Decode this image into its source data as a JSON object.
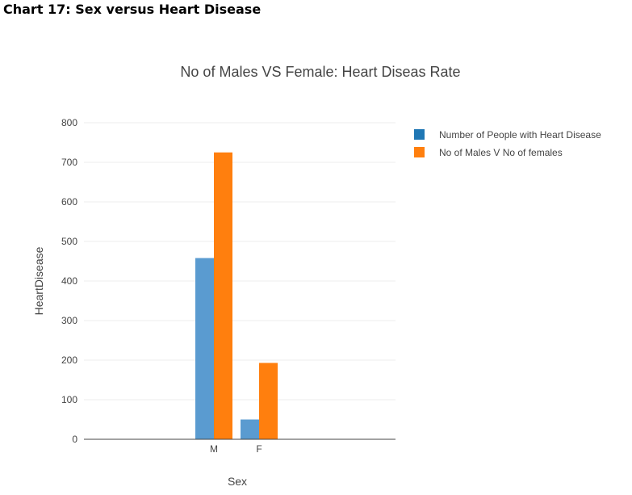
{
  "document": {
    "heading": "Chart 17: Sex versus Heart Disease"
  },
  "colors": {
    "series1": "#5a9bd0",
    "series2": "#ff7f0e",
    "legend1": "#1f77b4",
    "legend2": "#ff7f0e",
    "grid": "#eeeeee",
    "axis": "#444444"
  },
  "chart_data": {
    "type": "bar",
    "title": "No of Males VS Female: Heart Diseas Rate",
    "xlabel": "Sex",
    "ylabel": "HeartDisease",
    "categories": [
      "M",
      "F"
    ],
    "series": [
      {
        "name": "Number of People with Heart Disease",
        "values": [
          458,
          50
        ]
      },
      {
        "name": "No of Males V No of females",
        "values": [
          725,
          193
        ]
      }
    ],
    "ylim": [
      0,
      800
    ],
    "yticks": [
      0,
      100,
      200,
      300,
      400,
      500,
      600,
      700,
      800
    ],
    "grid": true,
    "legend_position": "top-right"
  }
}
